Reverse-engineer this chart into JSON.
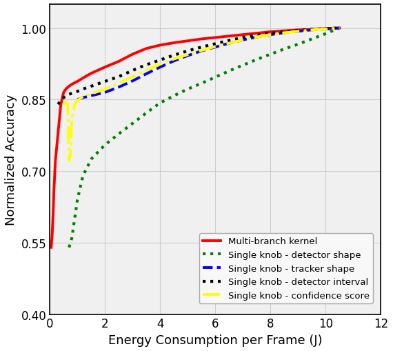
{
  "title": "",
  "xlabel": "Energy Consumption per Frame (J)",
  "ylabel": "Normalized Accuracy",
  "xlim": [
    0,
    12
  ],
  "ylim": [
    0.4,
    1.05
  ],
  "yticks": [
    0.4,
    0.55,
    0.7,
    0.85,
    1.0
  ],
  "xticks": [
    0,
    2,
    4,
    6,
    8,
    10,
    12
  ],
  "series": [
    {
      "label": "Multi-branch kernel",
      "color": "#ff0000",
      "linestyle": "solid",
      "linewidth": 2.8,
      "x": [
        0.05,
        0.08,
        0.12,
        0.15,
        0.2,
        0.3,
        0.4,
        0.5,
        0.6,
        0.7,
        0.8,
        0.9,
        1.0,
        1.2,
        1.5,
        2.0,
        2.5,
        3.0,
        3.5,
        4.0,
        4.5,
        5.0,
        5.5,
        6.0,
        6.5,
        7.0,
        7.5,
        8.0,
        8.5,
        9.0,
        9.5,
        10.0,
        10.5
      ],
      "y": [
        0.54,
        0.56,
        0.61,
        0.66,
        0.72,
        0.78,
        0.84,
        0.865,
        0.873,
        0.878,
        0.882,
        0.885,
        0.888,
        0.895,
        0.905,
        0.918,
        0.93,
        0.945,
        0.957,
        0.964,
        0.969,
        0.973,
        0.977,
        0.98,
        0.983,
        0.986,
        0.989,
        0.992,
        0.994,
        0.996,
        0.997,
        0.999,
        1.0
      ]
    },
    {
      "label": "Single knob - detector shape",
      "color": "#008000",
      "linestyle": "dotted",
      "linewidth": 3.0,
      "x": [
        0.7,
        0.8,
        0.9,
        1.0,
        1.2,
        1.5,
        2.0,
        2.5,
        3.0,
        3.5,
        4.0,
        4.5,
        5.0,
        5.5,
        6.0,
        6.5,
        7.0,
        7.5,
        8.0,
        8.5,
        9.0,
        9.5,
        10.0,
        10.5
      ],
      "y": [
        0.54,
        0.56,
        0.6,
        0.64,
        0.69,
        0.725,
        0.755,
        0.778,
        0.8,
        0.822,
        0.843,
        0.858,
        0.872,
        0.884,
        0.897,
        0.91,
        0.922,
        0.934,
        0.945,
        0.956,
        0.966,
        0.977,
        0.988,
        1.0
      ]
    },
    {
      "label": "Single knob - tracker shape",
      "color": "#0000ff",
      "linestyle": "dashed",
      "linewidth": 2.8,
      "x": [
        1.0,
        1.2,
        1.5,
        2.0,
        2.5,
        3.0,
        3.5,
        4.0,
        4.5,
        5.0,
        5.5,
        6.0,
        6.5,
        7.0,
        7.5,
        8.0,
        8.5,
        9.0,
        9.5,
        10.0,
        10.5
      ],
      "y": [
        0.85,
        0.854,
        0.858,
        0.865,
        0.876,
        0.889,
        0.904,
        0.918,
        0.931,
        0.942,
        0.952,
        0.96,
        0.968,
        0.975,
        0.981,
        0.986,
        0.99,
        0.993,
        0.996,
        0.998,
        1.0
      ]
    },
    {
      "label": "Single knob - detector interval",
      "color": "#000000",
      "linestyle": "dotted",
      "linewidth": 3.0,
      "x": [
        0.3,
        0.4,
        0.5,
        0.6,
        0.7,
        0.8,
        0.9,
        1.0,
        1.2,
        1.5,
        2.0,
        2.5,
        3.0,
        3.5,
        4.0,
        4.5,
        5.0,
        5.5,
        6.0,
        6.5,
        7.0,
        7.5,
        8.0,
        8.5,
        9.0,
        9.5,
        10.0,
        10.5
      ],
      "y": [
        0.84,
        0.848,
        0.854,
        0.858,
        0.861,
        0.863,
        0.865,
        0.867,
        0.872,
        0.878,
        0.888,
        0.898,
        0.911,
        0.923,
        0.933,
        0.943,
        0.952,
        0.96,
        0.967,
        0.974,
        0.98,
        0.985,
        0.989,
        0.992,
        0.995,
        0.997,
        0.999,
        1.0
      ]
    },
    {
      "label": "Single knob - confidence score",
      "color": "#ffff00",
      "linestyle": "dashdot",
      "linewidth": 2.8,
      "x": [
        0.5,
        0.6,
        0.65,
        0.7,
        0.75,
        0.8,
        0.9,
        1.0,
        1.2,
        1.5,
        2.0,
        2.5,
        3.0,
        3.5,
        4.0,
        4.5,
        5.0,
        5.5,
        6.0,
        6.5,
        7.0,
        7.5,
        8.0,
        8.5,
        9.0,
        9.5,
        10.0,
        10.5
      ],
      "y": [
        0.84,
        0.845,
        0.84,
        0.722,
        0.735,
        0.81,
        0.84,
        0.848,
        0.856,
        0.862,
        0.872,
        0.884,
        0.898,
        0.912,
        0.924,
        0.935,
        0.944,
        0.953,
        0.961,
        0.968,
        0.975,
        0.981,
        0.986,
        0.99,
        0.993,
        0.996,
        0.998,
        1.0
      ]
    }
  ],
  "legend_loc": "lower right",
  "grid": true,
  "background_color": "#f0f0f0",
  "figure_facecolor": "#ffffff",
  "grid_color": "#cccccc",
  "border_color": "#000000"
}
